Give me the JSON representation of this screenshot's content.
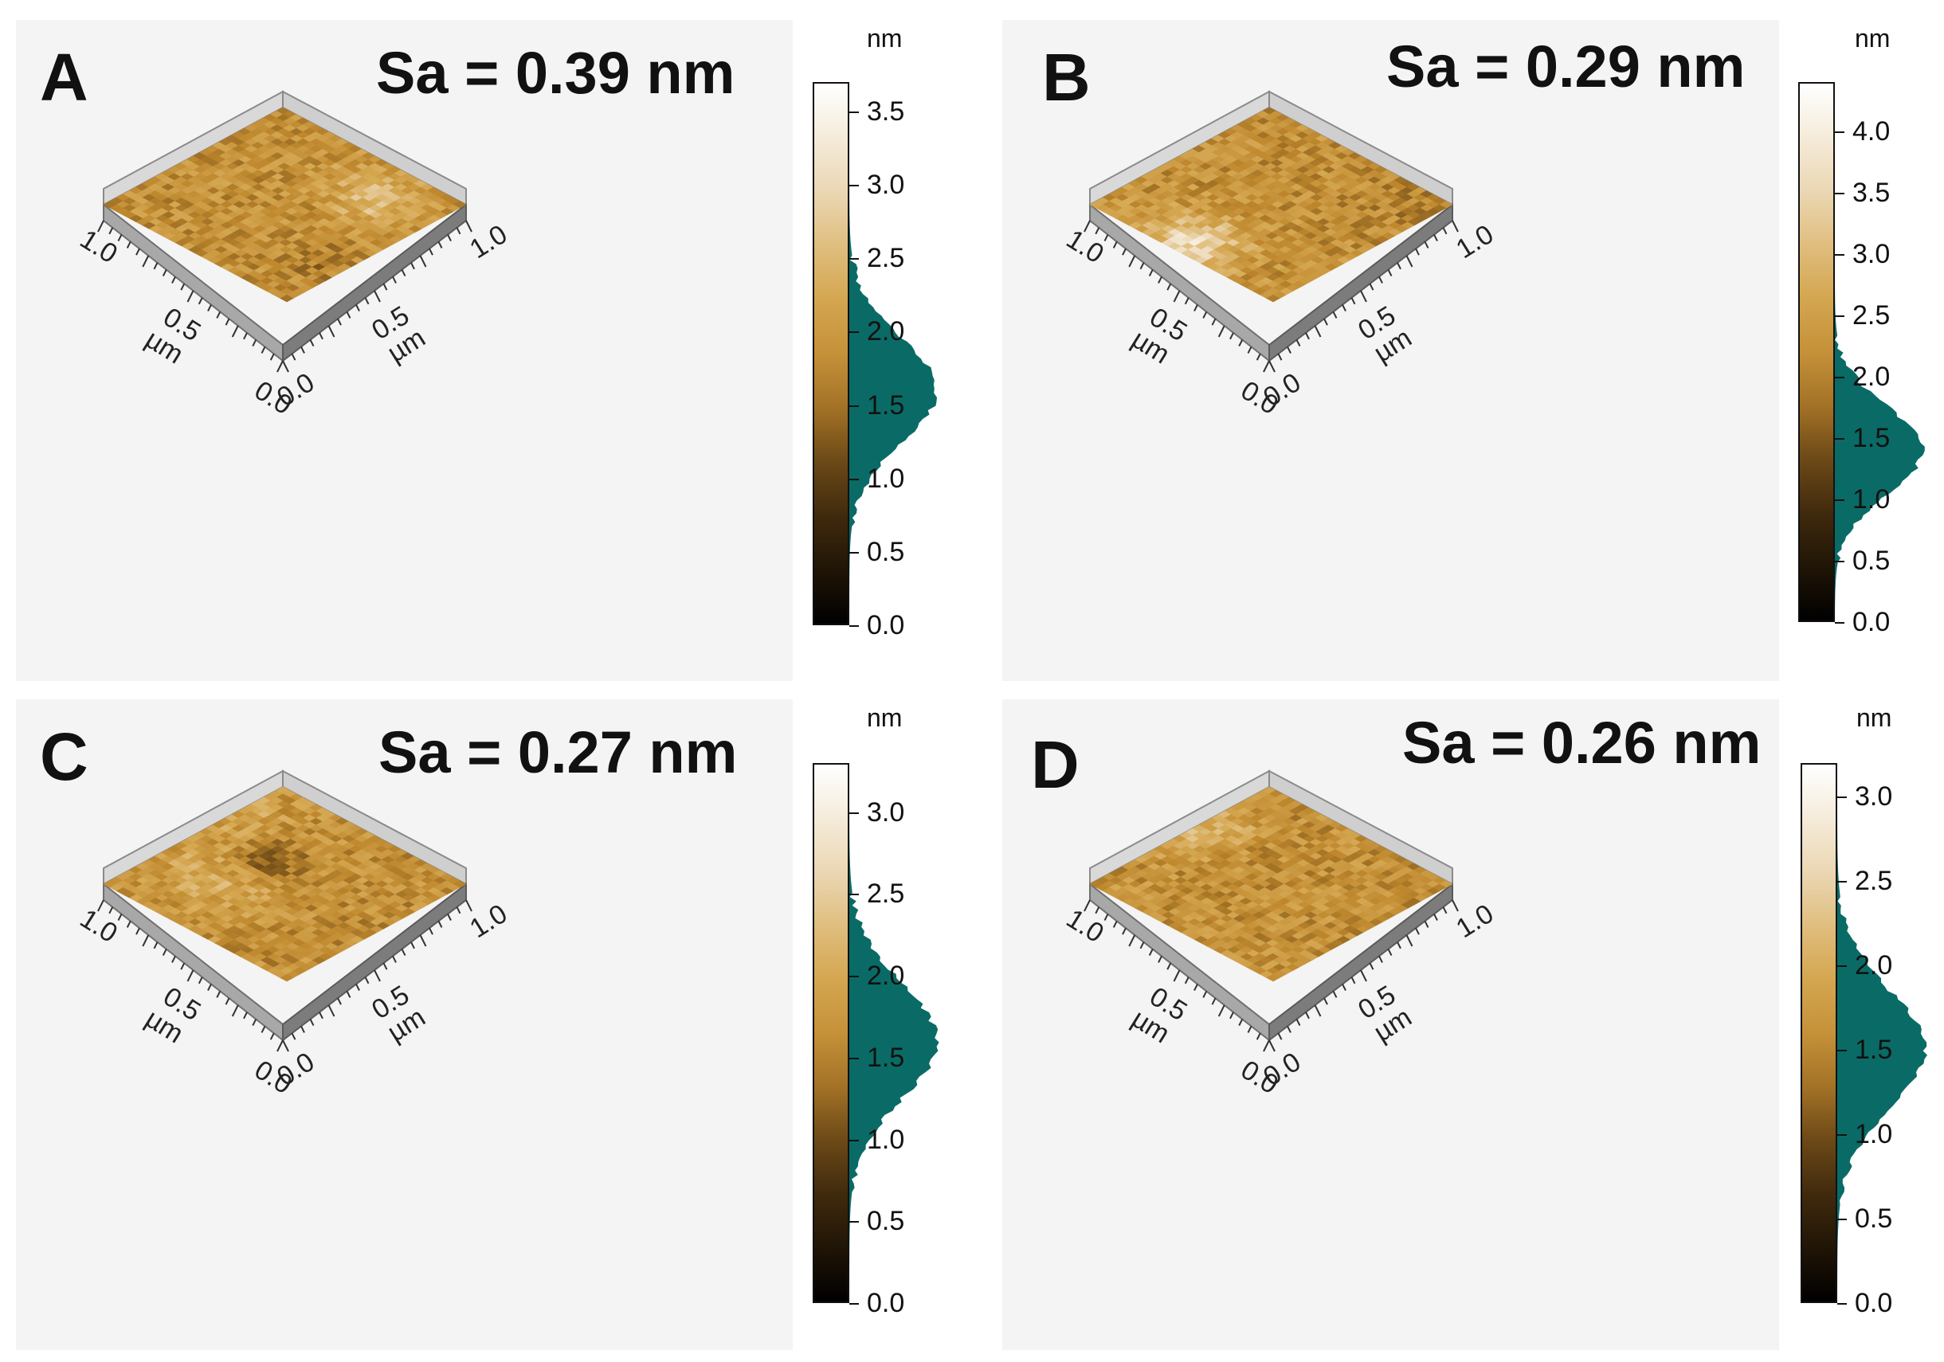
{
  "panels": [
    {
      "letter": "A",
      "sa": "Sa = 0.39 nm",
      "unit": "nm",
      "cbar_ticks": [
        "0.0",
        "0.5",
        "1.0",
        "1.5",
        "2.0",
        "2.5",
        "3.0",
        "3.5"
      ],
      "cbar_max": 3.7,
      "hist_peak": 1.6,
      "axis": {
        "left_max": "1.0",
        "left_mid": "0.5",
        "right_max": "1.0",
        "right_mid": "0.5",
        "origin_a": "0.0",
        "origin_b": "0.0",
        "unit": "µm"
      }
    },
    {
      "letter": "B",
      "sa": "Sa = 0.29 nm",
      "unit": "nm",
      "cbar_ticks": [
        "0.0",
        "0.5",
        "1.0",
        "1.5",
        "2.0",
        "2.5",
        "3.0",
        "3.5",
        "4.0"
      ],
      "cbar_max": 4.4,
      "hist_peak": 1.4,
      "axis": {
        "left_max": "1.0",
        "left_mid": "0.5",
        "right_max": "1.0",
        "right_mid": "0.5",
        "origin_a": "0.0",
        "origin_b": "0.0",
        "unit": "µm"
      }
    },
    {
      "letter": "C",
      "sa": "Sa = 0.27 nm",
      "unit": "nm",
      "cbar_ticks": [
        "0.0",
        "0.5",
        "1.0",
        "1.5",
        "2.0",
        "2.5",
        "3.0"
      ],
      "cbar_max": 3.3,
      "hist_peak": 1.6,
      "axis": {
        "left_max": "1.0",
        "left_mid": "0.5",
        "right_max": "1.0",
        "right_mid": "0.5",
        "origin_a": "0.0",
        "origin_b": "0.0",
        "unit": "µm"
      }
    },
    {
      "letter": "D",
      "sa": "Sa = 0.26 nm",
      "unit": "nm",
      "cbar_ticks": [
        "0.0",
        "0.5",
        "1.0",
        "1.5",
        "2.0",
        "2.5",
        "3.0"
      ],
      "cbar_max": 3.2,
      "hist_peak": 1.5,
      "axis": {
        "left_max": "1.0",
        "left_mid": "0.5",
        "right_max": "1.0",
        "right_mid": "0.5",
        "origin_a": "0.0",
        "origin_b": "0.0",
        "unit": "µm"
      }
    }
  ],
  "colors": {
    "surface_gold": "#b5832e",
    "surface_dark": "#5c3d12",
    "histogram": "#0a6b66",
    "background": "#f4f4f4"
  }
}
